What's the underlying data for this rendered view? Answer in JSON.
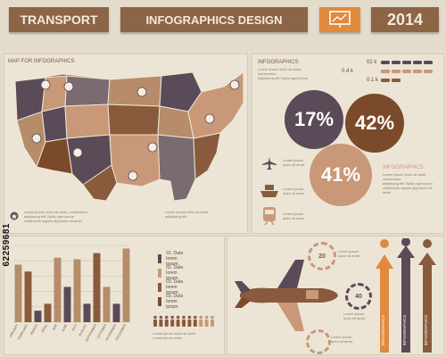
{
  "header": {
    "transport": "TRANSPORT",
    "infographics": "INFOGRAPHICS DESIGN",
    "year": "2014"
  },
  "map": {
    "title": "MAP FOR INFOGRAPHICS",
    "caption_lines": [
      "Lorem ipsum dolor sit amet, consectetur",
      "adipiscing elit. Nulla eget ipsum",
      "vestibulum sapien dignissim sit amet",
      "Lorem ipsum dolor sit amet,",
      "adipiscing elit."
    ]
  },
  "stats": {
    "title": "INFOGRAPHICS",
    "car_counts": [
      "02 k",
      "0.4 k",
      "0.1 k"
    ],
    "percent_1": "17%",
    "percent_2": "42%",
    "percent_3": "41%",
    "side_title": "INFOGRAPHICS",
    "transport_captions": [
      {
        "line1": "Lorem ipsum",
        "line2": "dolor sit amet."
      },
      {
        "line1": "Lorem ipsum",
        "line2": "dolor sit amet."
      },
      {
        "line1": "Lorem ipsum",
        "line2": "dolor sit amet."
      }
    ]
  },
  "chart_data": {
    "type": "bar",
    "categories": [
      "JANUARY",
      "FEBRUARY",
      "MARCH",
      "APRIL",
      "MAY",
      "JUNE",
      "JULY",
      "AUGUST",
      "SEPTEMBER",
      "OCTOBER",
      "NOVEMBER",
      "DECEMBER"
    ],
    "series": [
      {
        "values": [
          7.5,
          6.6,
          1.5,
          2.4,
          8.4,
          4.6,
          8.2,
          2.4,
          9.0,
          4.6,
          2.4,
          9.6
        ]
      }
    ],
    "colors": [
      "#b68c6a",
      "#8a5a3c",
      "#5b4a57",
      "#8a5a3c",
      "#b68c6a",
      "#5b4a57",
      "#b68c6a",
      "#5b4a57",
      "#8a5a3c",
      "#b68c6a",
      "#5b4a57",
      "#b68c6a"
    ],
    "ylim": [
      0,
      10
    ]
  },
  "legend": [
    {
      "label": "01. Data lorem ipsum.",
      "color": "#5b4a57"
    },
    {
      "label": "02. Data lorem ipsum.",
      "color": "#c89878"
    },
    {
      "label": "03. Data lorem ipsum.",
      "color": "#8a5a3c"
    },
    {
      "label": "03. Data lorem ipsum.",
      "color": "#7a4a2a"
    }
  ],
  "people_caption": [
    "Lorem ipsum dolor sit amet",
    "Lorem ipsum dolor"
  ],
  "plane_panel": {
    "gauge_1": "20",
    "gauge_2": "40",
    "gauge_captions": [
      {
        "line1": "Lorem ipsum",
        "line2": "dolor sit amet."
      },
      {
        "line1": "Lorem ipsum",
        "line2": "dolor sit amet."
      },
      {
        "line1": "Lorem ipsum",
        "line2": "dolor sit amet."
      }
    ],
    "ribbons": [
      "INFOGRAPHICS",
      "INFOGRAPHICS",
      "INFOGRAPHICS"
    ]
  },
  "watermark": "62259681",
  "colors": {
    "header_brown": "#8c6446",
    "orange": "#e08a3e",
    "purple": "#5b4a57",
    "dark_brown": "#6b4a30",
    "tan": "#c89878"
  }
}
